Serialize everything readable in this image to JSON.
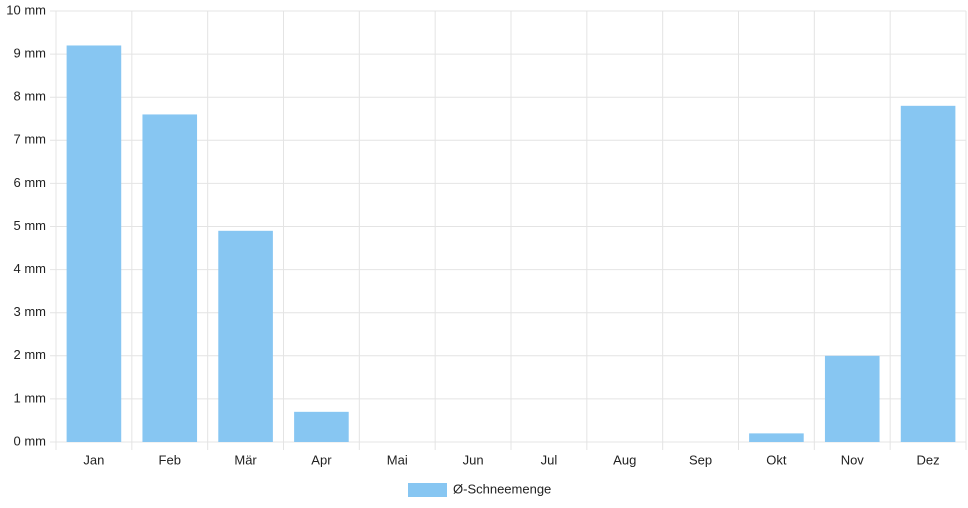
{
  "chart_data": {
    "type": "bar",
    "categories": [
      "Jan",
      "Feb",
      "Mär",
      "Apr",
      "Mai",
      "Jun",
      "Jul",
      "Aug",
      "Sep",
      "Okt",
      "Nov",
      "Dez"
    ],
    "series": [
      {
        "name": "Ø-Schneemenge",
        "color": "#87c6f2",
        "values": [
          9.2,
          7.6,
          4.9,
          0.7,
          0,
          0,
          0,
          0,
          0,
          0.2,
          2.0,
          7.8
        ]
      }
    ],
    "ylim": [
      0,
      10
    ],
    "yticks": [
      {
        "value": 0,
        "label": "0 mm"
      },
      {
        "value": 1,
        "label": "1 mm"
      },
      {
        "value": 2,
        "label": "2 mm"
      },
      {
        "value": 3,
        "label": "3 mm"
      },
      {
        "value": 4,
        "label": "4 mm"
      },
      {
        "value": 5,
        "label": "5 mm"
      },
      {
        "value": 6,
        "label": "6 mm"
      },
      {
        "value": 7,
        "label": "7 mm"
      },
      {
        "value": 8,
        "label": "8 mm"
      },
      {
        "value": 9,
        "label": "9 mm"
      },
      {
        "value": 10,
        "label": "10 mm"
      }
    ],
    "grid": true,
    "legend": "bottom"
  }
}
